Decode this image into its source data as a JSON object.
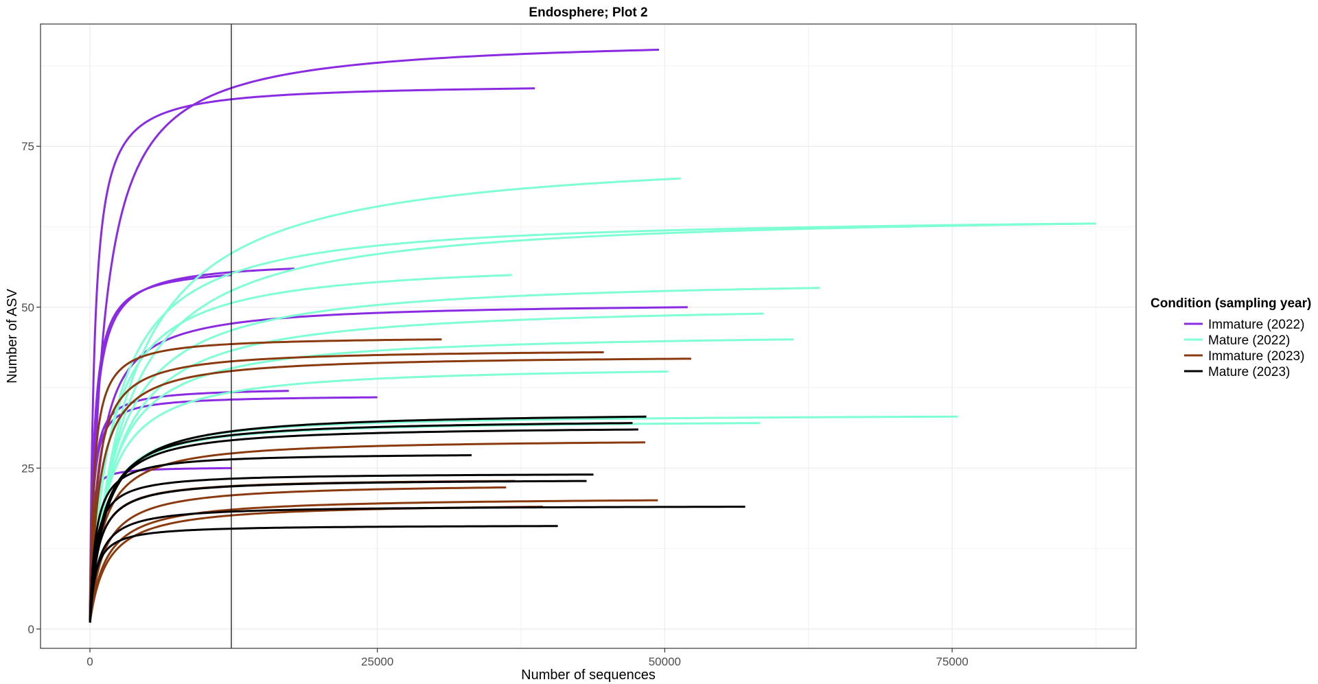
{
  "chart_data": {
    "type": "line",
    "title": "Endosphere; Plot 2",
    "xlabel": "Number of sequences",
    "ylabel": "Number of ASV",
    "xlim": [
      -4300,
      91000
    ],
    "ylim": [
      -3,
      94
    ],
    "x_ticks": [
      0,
      25000,
      50000,
      75000
    ],
    "x_tick_labels": [
      "0",
      "25000",
      "50000",
      "75000"
    ],
    "y_ticks": [
      0,
      25,
      50,
      75
    ],
    "y_tick_labels": [
      "0",
      "25",
      "50",
      "75"
    ],
    "grid": true,
    "vline_x": 12300,
    "legend": {
      "title": "Condition (sampling year)",
      "position": "right",
      "entries": [
        {
          "label": "Immature (2022)",
          "color": "#8a2be2"
        },
        {
          "label": "Mature (2022)",
          "color": "#7fffd4"
        },
        {
          "label": "Immature (2023)",
          "color": "#8b3a0f"
        },
        {
          "label": "Mature (2023)",
          "color": "#000000"
        }
      ]
    },
    "curves": [
      {
        "group": 0,
        "max_x": 49500,
        "max_y": 90,
        "k": 1200
      },
      {
        "group": 0,
        "max_x": 38700,
        "max_y": 84,
        "k": 380
      },
      {
        "group": 0,
        "max_x": 17800,
        "max_y": 56,
        "k": 420
      },
      {
        "group": 0,
        "max_x": 12300,
        "max_y": 55,
        "k": 350
      },
      {
        "group": 0,
        "max_x": 52000,
        "max_y": 50,
        "k": 900
      },
      {
        "group": 0,
        "max_x": 17300,
        "max_y": 37,
        "k": 250
      },
      {
        "group": 0,
        "max_x": 25000,
        "max_y": 36,
        "k": 250
      },
      {
        "group": 0,
        "max_x": 12300,
        "max_y": 25,
        "k": 100
      },
      {
        "group": 1,
        "max_x": 51400,
        "max_y": 70,
        "k": 3500
      },
      {
        "group": 1,
        "max_x": 87500,
        "max_y": 63,
        "k": 3000
      },
      {
        "group": 1,
        "max_x": 87500,
        "max_y": 63,
        "k": 2100
      },
      {
        "group": 1,
        "max_x": 36700,
        "max_y": 55,
        "k": 1700
      },
      {
        "group": 1,
        "max_x": 63500,
        "max_y": 53,
        "k": 2300
      },
      {
        "group": 1,
        "max_x": 58600,
        "max_y": 49,
        "k": 2200
      },
      {
        "group": 1,
        "max_x": 61200,
        "max_y": 45,
        "k": 1800
      },
      {
        "group": 1,
        "max_x": 50300,
        "max_y": 40,
        "k": 1500
      },
      {
        "group": 1,
        "max_x": 75500,
        "max_y": 33,
        "k": 1200
      },
      {
        "group": 1,
        "max_x": 58300,
        "max_y": 32,
        "k": 1100
      },
      {
        "group": 2,
        "max_x": 30600,
        "max_y": 45,
        "k": 350
      },
      {
        "group": 2,
        "max_x": 44700,
        "max_y": 43,
        "k": 600
      },
      {
        "group": 2,
        "max_x": 52300,
        "max_y": 42,
        "k": 800
      },
      {
        "group": 2,
        "max_x": 48300,
        "max_y": 29,
        "k": 1100
      },
      {
        "group": 2,
        "max_x": 36200,
        "max_y": 22,
        "k": 1200
      },
      {
        "group": 2,
        "max_x": 49400,
        "max_y": 20,
        "k": 1400
      },
      {
        "group": 2,
        "max_x": 39400,
        "max_y": 19,
        "k": 1500
      },
      {
        "group": 2,
        "max_x": 37000,
        "max_y": 23,
        "k": 700
      },
      {
        "group": 3,
        "max_x": 48400,
        "max_y": 33,
        "k": 1300
      },
      {
        "group": 3,
        "max_x": 47200,
        "max_y": 32,
        "k": 1100
      },
      {
        "group": 3,
        "max_x": 47700,
        "max_y": 31,
        "k": 1000
      },
      {
        "group": 3,
        "max_x": 33200,
        "max_y": 27,
        "k": 500
      },
      {
        "group": 3,
        "max_x": 43800,
        "max_y": 24,
        "k": 500
      },
      {
        "group": 3,
        "max_x": 43200,
        "max_y": 23,
        "k": 700
      },
      {
        "group": 3,
        "max_x": 57000,
        "max_y": 19,
        "k": 700
      },
      {
        "group": 3,
        "max_x": 40700,
        "max_y": 16,
        "k": 500
      }
    ]
  }
}
